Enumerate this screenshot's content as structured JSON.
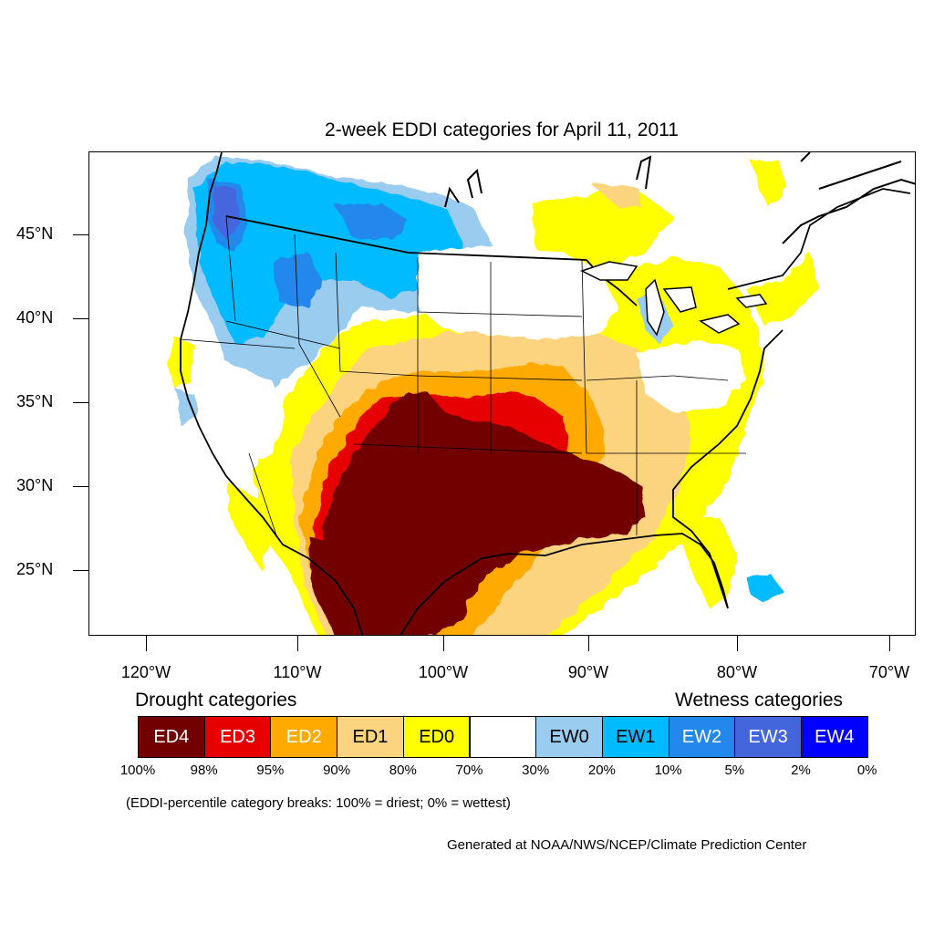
{
  "title": "2-week EDDI categories for April 11, 2011",
  "map": {
    "lat_labels": [
      "45°N",
      "40°N",
      "35°N",
      "30°N",
      "25°N"
    ],
    "lon_labels": [
      "120°W",
      "110°W",
      "100°W",
      "90°W",
      "80°W",
      "70°W"
    ],
    "colors": {
      "ED4": "#730000",
      "ED3": "#e60000",
      "ED2": "#ffaa00",
      "ED1": "#fcd37f",
      "ED0": "#ffff00",
      "neutral": "#ffffff",
      "EW0": "#99ccee",
      "EW1": "#00bbff",
      "EW2": "#2288ee",
      "EW3": "#4466dd",
      "EW4": "#0000ff"
    }
  },
  "legend": {
    "drought_heading": "Drought categories",
    "wetness_heading": "Wetness categories",
    "categories": [
      {
        "label": "ED4",
        "color": "#730000",
        "text_color": "#ffffff"
      },
      {
        "label": "ED3",
        "color": "#e60000",
        "text_color": "#ffffff"
      },
      {
        "label": "ED2",
        "color": "#ffaa00",
        "text_color": "#ffffff"
      },
      {
        "label": "ED1",
        "color": "#fcd37f",
        "text_color": "#000000"
      },
      {
        "label": "ED0",
        "color": "#ffff00",
        "text_color": "#000000"
      },
      {
        "label": "",
        "color": "#ffffff",
        "text_color": "#000000"
      },
      {
        "label": "EW0",
        "color": "#99ccee",
        "text_color": "#000000"
      },
      {
        "label": "EW1",
        "color": "#00bbff",
        "text_color": "#000000"
      },
      {
        "label": "EW2",
        "color": "#2288ee",
        "text_color": "#ffffff"
      },
      {
        "label": "EW3",
        "color": "#4466dd",
        "text_color": "#ffffff"
      },
      {
        "label": "EW4",
        "color": "#0000ff",
        "text_color": "#ffffff"
      }
    ],
    "percentiles": [
      "100%",
      "98%",
      "95%",
      "90%",
      "80%",
      "70%",
      "30%",
      "20%",
      "10%",
      "5%",
      "2%",
      "0%"
    ]
  },
  "note": "(EDDI-percentile category breaks: 100% = driest; 0% = wettest)",
  "credit": "Generated at NOAA/NWS/NCEP/Climate Prediction Center"
}
